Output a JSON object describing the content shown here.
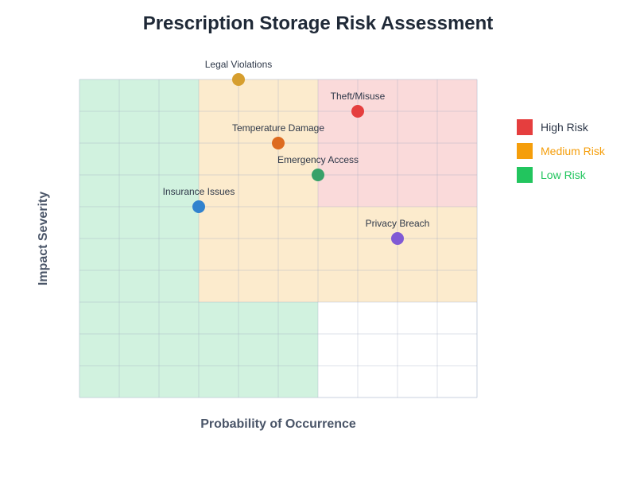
{
  "title": "Prescription Storage Risk Assessment",
  "axes": {
    "xlabel": "Probability of Occurrence",
    "ylabel": "Impact Severity"
  },
  "legend": [
    {
      "label": "High Risk",
      "color": "#e53e3e",
      "text_color": "#2d3748"
    },
    {
      "label": "Medium Risk",
      "color": "#f59e0b",
      "text_color": "#f59e0b"
    },
    {
      "label": "Low Risk",
      "color": "#22c55e",
      "text_color": "#22c55e"
    }
  ],
  "chart_data": {
    "type": "scatter",
    "title": "Prescription Storage Risk Assessment",
    "xlabel": "Probability of Occurrence",
    "ylabel": "Impact Severity",
    "xlim": [
      0,
      10
    ],
    "ylim": [
      0,
      10
    ],
    "grid": true,
    "legend_position": "right",
    "points": [
      {
        "label": "Legal Violations",
        "x": 4,
        "y": 10,
        "color": "#d69e2e"
      },
      {
        "label": "Theft/Misuse",
        "x": 7,
        "y": 9,
        "color": "#e53e3e"
      },
      {
        "label": "Temperature Damage",
        "x": 5,
        "y": 8,
        "color": "#dd6b20"
      },
      {
        "label": "Emergency Access",
        "x": 6,
        "y": 7,
        "color": "#38a169"
      },
      {
        "label": "Insurance Issues",
        "x": 3,
        "y": 6,
        "color": "#3182ce"
      },
      {
        "label": "Privacy Breach",
        "x": 8,
        "y": 5,
        "color": "#805ad5"
      }
    ],
    "zones": [
      {
        "name": "Low Risk",
        "x": [
          0,
          3
        ],
        "y": [
          0,
          10
        ],
        "fill": "#d1f2df"
      },
      {
        "name": "Low Risk",
        "x": [
          3,
          6
        ],
        "y": [
          0,
          3
        ],
        "fill": "#d1f2df"
      },
      {
        "name": "Medium Risk",
        "x": [
          3,
          10
        ],
        "y": [
          3,
          6
        ],
        "fill": "#fcebcd"
      },
      {
        "name": "Medium Risk",
        "x": [
          3,
          6
        ],
        "y": [
          6,
          10
        ],
        "fill": "#fcebcd"
      },
      {
        "name": "High Risk",
        "x": [
          6,
          10
        ],
        "y": [
          6,
          10
        ],
        "fill": "#fadada"
      }
    ]
  }
}
